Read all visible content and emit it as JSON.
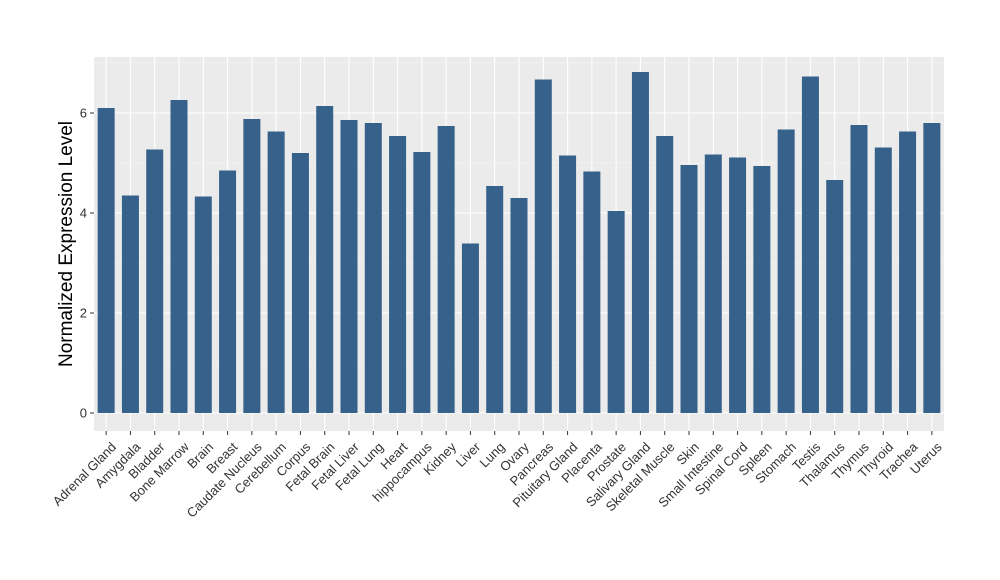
{
  "chart_data": {
    "type": "bar",
    "title": "",
    "xlabel": "",
    "ylabel": "Normalized Expression Level",
    "ylim": [
      -0.2,
      7.1
    ],
    "yticks": [
      0,
      2,
      4,
      6
    ],
    "grid": true,
    "bar_color": "#35618b",
    "panel_color": "#ebebeb",
    "categories": [
      "Adrenal Gland",
      "Amygdala",
      "Bladder",
      "Bone Marrow",
      "Brain",
      "Breast",
      "Caudate Nucleus",
      "Cerebellum",
      "Corpus",
      "Fetal Brain",
      "Fetal Liver",
      "Fetal Lung",
      "Heart",
      "hippocampus",
      "Kidney",
      "Liver",
      "Lung",
      "Ovary",
      "Pancreas",
      "Pituitary Gland",
      "Placenta",
      "Prostate",
      "Salivary Gland",
      "Skeletal Muscle",
      "Skin",
      "Small Intestine",
      "Spinal Cord",
      "Spleen",
      "Stomach",
      "Testis",
      "Thalamus",
      "Thymus",
      "Thyroid",
      "Trachea",
      "Uterus"
    ],
    "values": [
      6.1,
      4.35,
      5.27,
      6.26,
      4.33,
      4.85,
      5.88,
      5.63,
      5.2,
      6.14,
      5.86,
      5.8,
      5.54,
      5.22,
      5.74,
      3.39,
      4.54,
      4.3,
      6.67,
      5.15,
      4.83,
      4.04,
      6.82,
      5.54,
      4.96,
      5.17,
      5.11,
      4.94,
      5.67,
      6.73,
      4.66,
      5.76,
      5.31,
      5.63,
      5.8
    ]
  }
}
